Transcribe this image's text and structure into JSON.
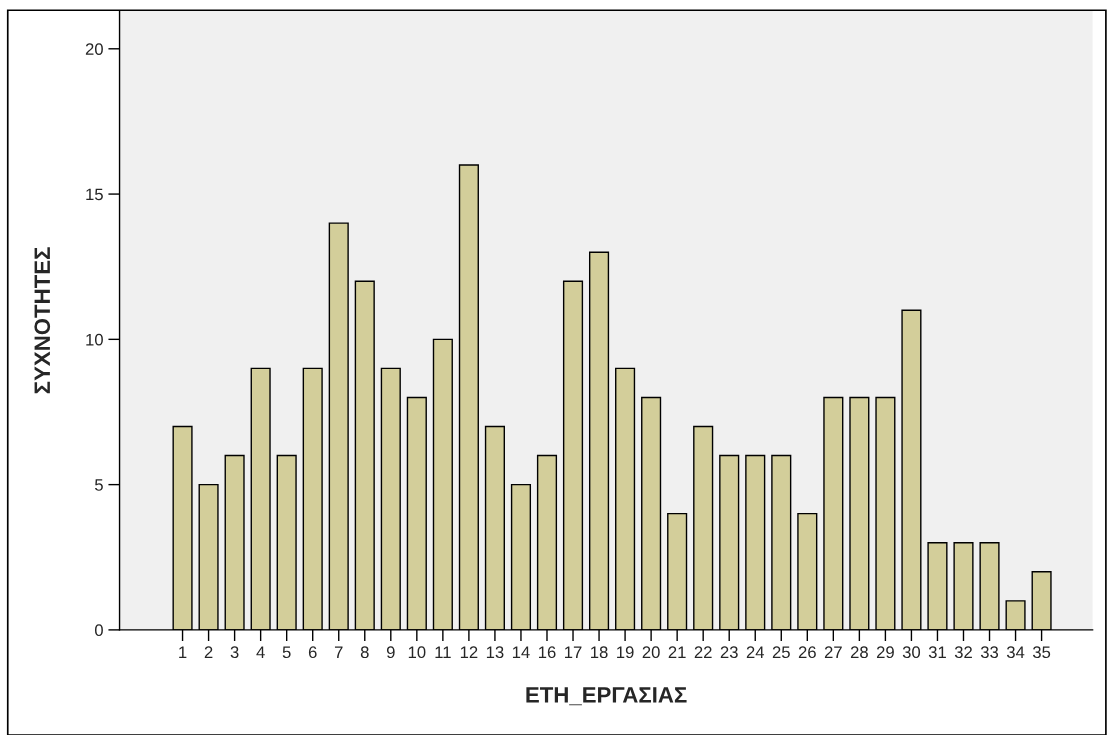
{
  "chart_data": {
    "type": "bar",
    "xlabel": "ΕΤΗ_ΕΡΓΑΣΙΑΣ",
    "ylabel": "ΣΥΧΝΟΤΗΤΕΣ",
    "categories": [
      "1",
      "2",
      "3",
      "4",
      "5",
      "6",
      "7",
      "8",
      "9",
      "10",
      "11",
      "12",
      "13",
      "14",
      "16",
      "17",
      "18",
      "19",
      "20",
      "21",
      "22",
      "23",
      "24",
      "25",
      "26",
      "27",
      "28",
      "29",
      "30",
      "31",
      "32",
      "33",
      "34",
      "35"
    ],
    "values": [
      7,
      5,
      6,
      9,
      6,
      9,
      14,
      12,
      9,
      8,
      10,
      16,
      7,
      5,
      6,
      12,
      13,
      9,
      8,
      4,
      7,
      6,
      6,
      6,
      4,
      8,
      8,
      8,
      11,
      3,
      3,
      3,
      1,
      2
    ],
    "color": "#d3ce9a",
    "ylim": [
      0,
      21.3
    ],
    "yticks": [
      0,
      5,
      10,
      15,
      20
    ],
    "grid": false,
    "legend": false
  }
}
